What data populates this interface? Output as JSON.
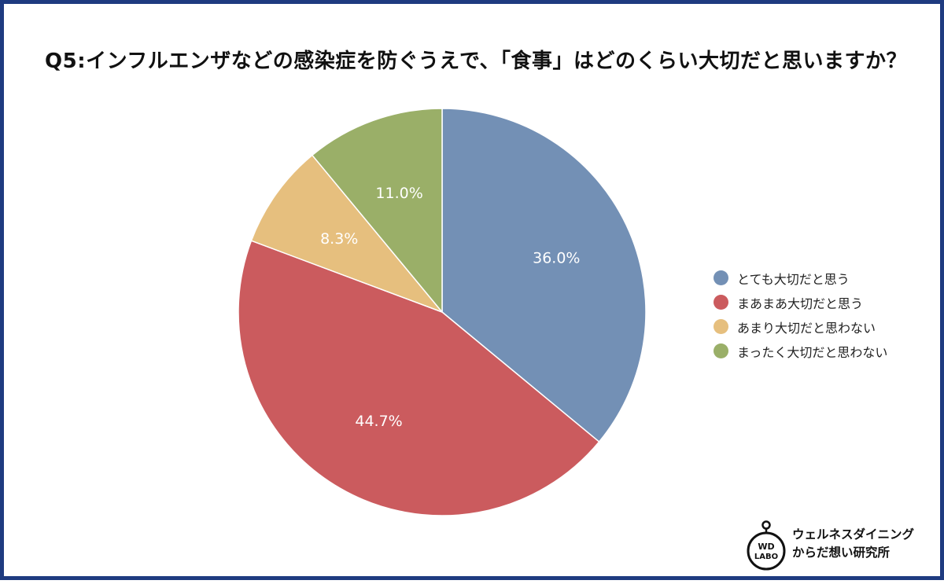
{
  "chart_data": {
    "type": "pie",
    "title": "Q5:インフルエンザなどの感染症を防ぐうえで、「食事」はどのくらい大切だと思いますか？",
    "start_angle": "12 o'clock",
    "direction": "clockwise",
    "legend_position": "right",
    "slices": [
      {
        "label": "とても大切だと思う",
        "value": 36.0,
        "display": "36.0%",
        "color": "#7390b5"
      },
      {
        "label": "まあまあ大切だと思う",
        "value": 44.7,
        "display": "44.7%",
        "color": "#cb5b5e"
      },
      {
        "label": "あまり大切だと思わない",
        "value": 8.3,
        "display": "8.3%",
        "color": "#e6bf7e"
      },
      {
        "label": "まったく大切だと思わない",
        "value": 11.0,
        "display": "11.0%",
        "color": "#9aaf68"
      }
    ]
  },
  "branding": {
    "logo_mark_line1": "WD",
    "logo_mark_line2": "LABO",
    "org_line1": "ウェルネスダイニング",
    "org_line2": "からだ想い研究所",
    "frame_color": "#1f3b80"
  }
}
